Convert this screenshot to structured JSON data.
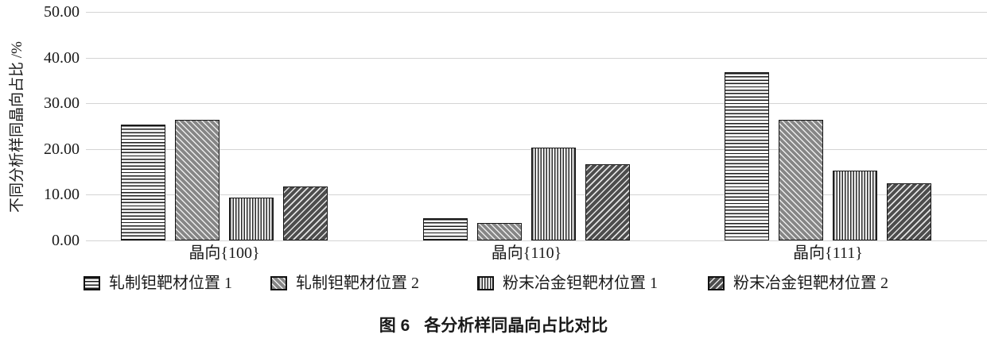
{
  "figure": {
    "caption_prefix": "图 6",
    "caption_text": "各分析样同晶向占比对比"
  },
  "chart_data": {
    "type": "bar",
    "title": "",
    "xlabel": "",
    "ylabel": "不同分析样同晶向占比 /%",
    "ylim": [
      0,
      50
    ],
    "ytick_step": 10,
    "ytick_labels": [
      "50.00",
      "40.00",
      "30.00",
      "20.00",
      "10.00",
      "0.00"
    ],
    "grid": true,
    "legend_position": "bottom",
    "categories": [
      "晶向{100}",
      "晶向{110}",
      "晶向{111}"
    ],
    "series": [
      {
        "name": "轧制钽靶材位置 1",
        "pattern": "horizontal-lines",
        "values": [
          25.3,
          4.8,
          36.8
        ]
      },
      {
        "name": "轧制钽靶材位置 2",
        "pattern": "diagonal-backslash",
        "values": [
          26.4,
          3.9,
          26.4
        ]
      },
      {
        "name": "粉末冶金钽靶材位置 1",
        "pattern": "vertical-lines",
        "values": [
          9.4,
          20.3,
          15.3
        ]
      },
      {
        "name": "粉末冶金钽靶材位置 2",
        "pattern": "diagonal-slash",
        "values": [
          11.8,
          16.6,
          12.5
        ]
      }
    ],
    "colors": {
      "bar_border": "#141414",
      "gridline": "#d4d4d4",
      "text": "#1a1a1a",
      "background": "#ffffff"
    }
  }
}
